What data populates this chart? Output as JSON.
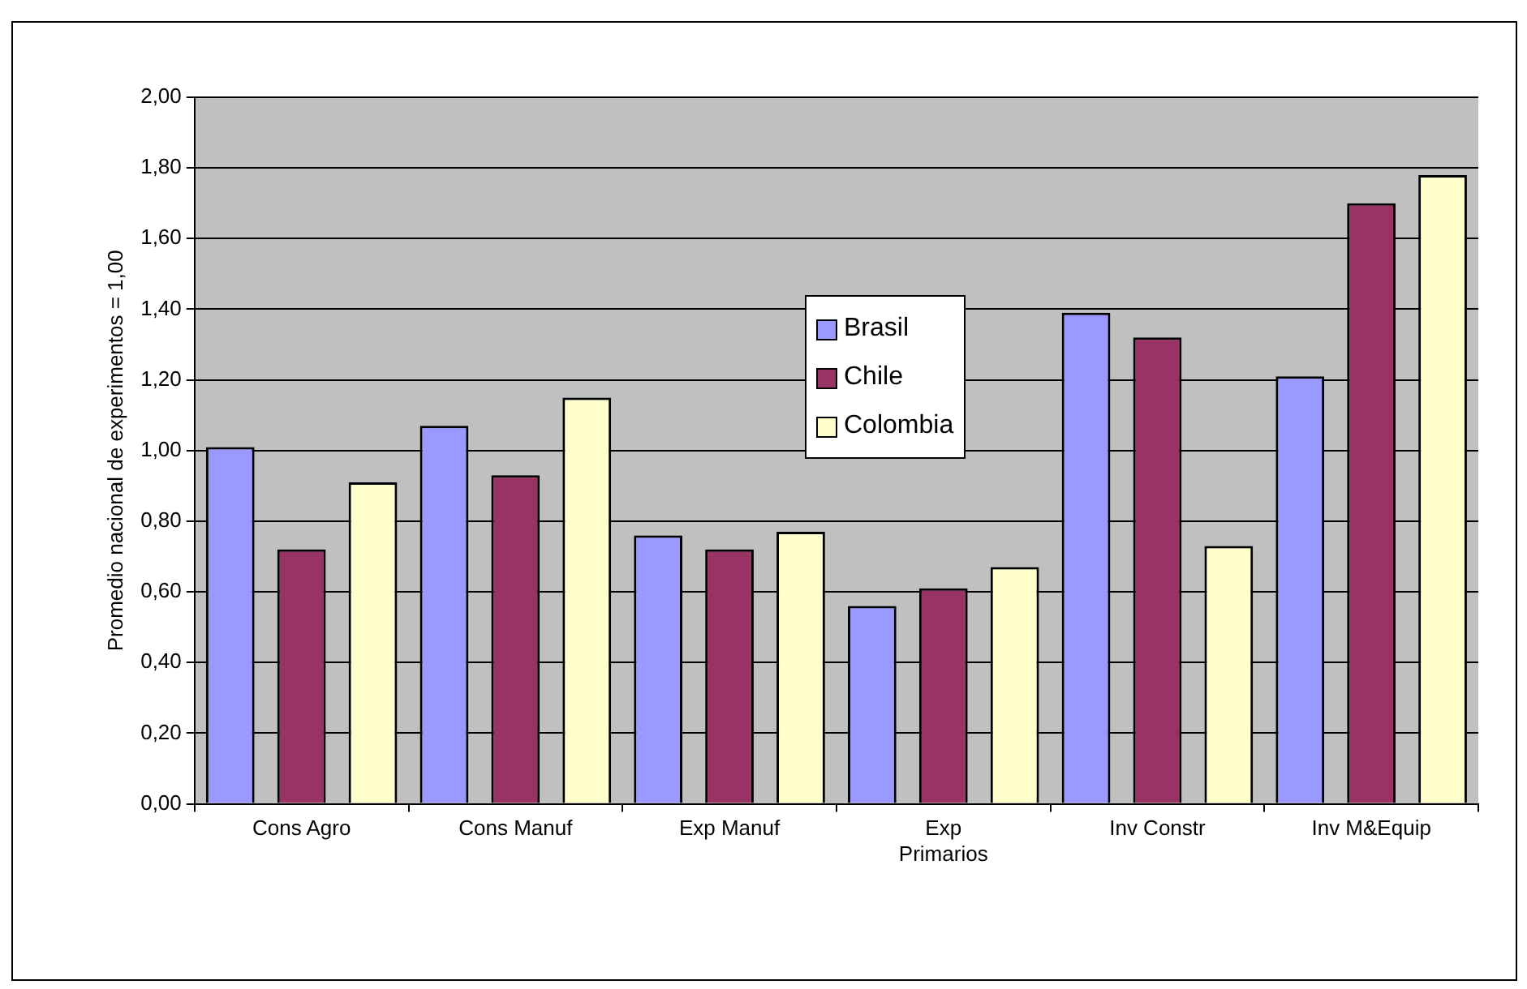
{
  "chart_data": {
    "type": "bar",
    "ylabel": "Promedio nacional de experimentos = 1,00",
    "categories": [
      "Cons Agro",
      "Cons Manuf",
      "Exp Manuf",
      "Exp Primarios",
      "Inv Constr",
      "Inv M&Equip"
    ],
    "series": [
      {
        "name": "Brasil",
        "color": "#9999ff",
        "values": [
          1.01,
          1.07,
          0.76,
          0.56,
          1.39,
          1.21
        ]
      },
      {
        "name": "Chile",
        "color": "#993366",
        "values": [
          0.72,
          0.93,
          0.72,
          0.61,
          1.32,
          1.7
        ]
      },
      {
        "name": "Colombia",
        "color": "#ffffcc",
        "values": [
          0.91,
          1.15,
          0.77,
          0.67,
          0.73,
          1.78
        ]
      }
    ],
    "ylim": [
      0,
      2
    ],
    "yticks": [
      {
        "value": 0,
        "label": "0,00"
      },
      {
        "value": 0.2,
        "label": "0,20"
      },
      {
        "value": 0.4,
        "label": "0,40"
      },
      {
        "value": 0.6,
        "label": "0,60"
      },
      {
        "value": 0.8,
        "label": "0,80"
      },
      {
        "value": 1,
        "label": "1,00"
      },
      {
        "value": 1.2,
        "label": "1,20"
      },
      {
        "value": 1.4,
        "label": "1,40"
      },
      {
        "value": 1.6,
        "label": "1,60"
      },
      {
        "value": 1.8,
        "label": "1,80"
      },
      {
        "value": 2,
        "label": "2,00"
      }
    ],
    "grid": "y",
    "legend": "top"
  }
}
